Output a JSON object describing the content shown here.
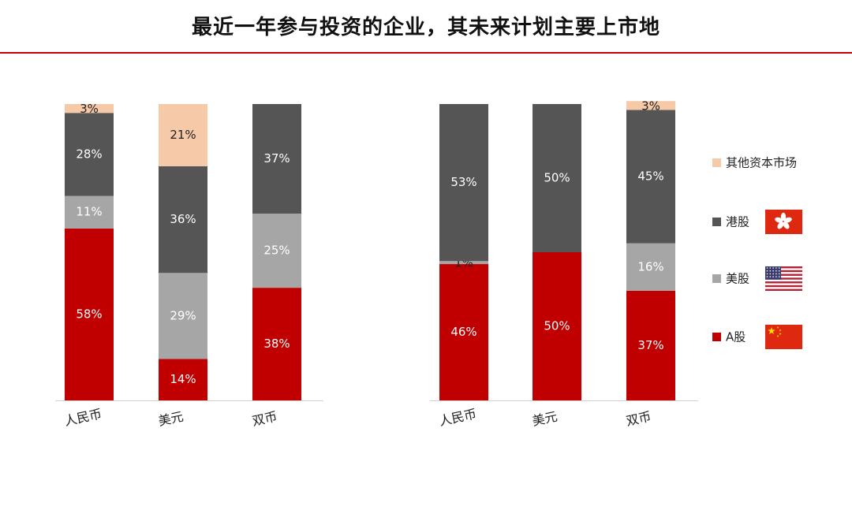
{
  "title": "最近一年参与投资的企业，其未来计划主要上市地",
  "chart_data": [
    {
      "type": "bar",
      "stacked": true,
      "categories": [
        "人民币",
        "美元",
        "双币"
      ],
      "series": [
        {
          "name": "A股",
          "values": [
            58,
            14,
            38
          ]
        },
        {
          "name": "美股",
          "values": [
            11,
            29,
            25
          ]
        },
        {
          "name": "港股",
          "values": [
            28,
            36,
            37
          ]
        },
        {
          "name": "其他资本市场",
          "values": [
            3,
            21,
            0
          ]
        }
      ],
      "ylim": [
        0,
        100
      ]
    },
    {
      "type": "bar",
      "stacked": true,
      "categories": [
        "人民币",
        "美元",
        "双币"
      ],
      "series": [
        {
          "name": "A股",
          "values": [
            46,
            50,
            37
          ]
        },
        {
          "name": "美股",
          "values": [
            1,
            0,
            16
          ]
        },
        {
          "name": "港股",
          "values": [
            53,
            50,
            45
          ]
        },
        {
          "name": "其他资本市场",
          "values": [
            0,
            0,
            3
          ]
        }
      ],
      "ylim": [
        0,
        100
      ]
    }
  ],
  "legend": [
    {
      "name": "其他资本市场",
      "color": "#f6c9a8",
      "flag": ""
    },
    {
      "name": "港股",
      "color": "#555555",
      "flag": "hk-flag-icon"
    },
    {
      "name": "美股",
      "color": "#a6a6a6",
      "flag": "us-flag-icon"
    },
    {
      "name": "A股",
      "color": "#c00000",
      "flag": "cn-flag-icon"
    }
  ],
  "colors": {
    "A股": "#c00000",
    "美股": "#a6a6a6",
    "港股": "#555555",
    "其他资本市场": "#f6c9a8",
    "title_rule": "#c00000"
  }
}
